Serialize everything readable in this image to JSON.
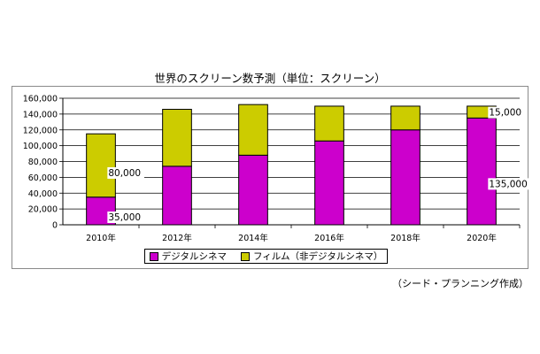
{
  "title": "世界のスクリーン数予測（単位：スクリーン）",
  "credit": "（シード・プランニング作成）",
  "colors": {
    "digital": "#cc00cc",
    "film": "#cccc00",
    "grid": "#000000"
  },
  "chart_data": {
    "type": "bar",
    "stacked": true,
    "categories": [
      "2010年",
      "2012年",
      "2014年",
      "2016年",
      "2018年",
      "2020年"
    ],
    "series": [
      {
        "name": "デジタルシネマ",
        "color": "#cc00cc",
        "values": [
          35000,
          74000,
          88000,
          106000,
          120000,
          135000
        ]
      },
      {
        "name": "フィルム（非デジタルシネマ）",
        "color": "#cccc00",
        "values": [
          80000,
          72000,
          64000,
          44000,
          30000,
          15000
        ]
      }
    ],
    "ylim": [
      0,
      160000
    ],
    "yticks": [
      "0",
      "20,000",
      "40,000",
      "60,000",
      "80,000",
      "100,000",
      "120,000",
      "140,000",
      "160,000"
    ],
    "grid": true,
    "legend": "bottom",
    "annotations": [
      {
        "text": "80,000",
        "category": 0,
        "series": 1
      },
      {
        "text": "35,000",
        "category": 0,
        "series": 0
      },
      {
        "text": "15,000",
        "category": 5,
        "series": 1
      },
      {
        "text": "135,000",
        "category": 5,
        "series": 0
      }
    ]
  }
}
